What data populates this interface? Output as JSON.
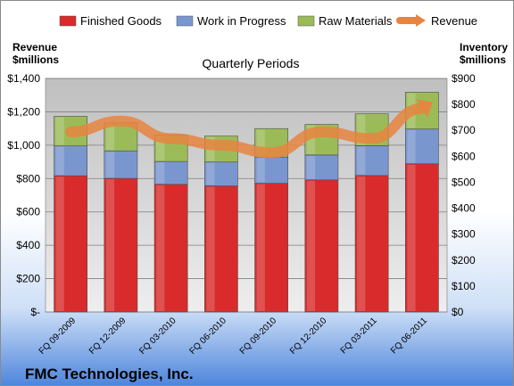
{
  "chart_data": {
    "type": "bar",
    "stacked": true,
    "title": "Quarterly Periods",
    "footer": "FMC Technologies, Inc.",
    "categories": [
      "FQ 09-2009",
      "FQ 12-2009",
      "FQ 03-2010",
      "FQ 06-2010",
      "FQ 09-2010",
      "FQ 12-2010",
      "FQ 03-2011",
      "FQ 06-2011"
    ],
    "series": [
      {
        "name": "Finished Goods",
        "axis": "right",
        "values": [
          525,
          515,
          492,
          486,
          496,
          509,
          526,
          571
        ],
        "color": "#d92b2b"
      },
      {
        "name": "Work in Progress",
        "axis": "right",
        "values": [
          115,
          106,
          88,
          92,
          101,
          96,
          115,
          134
        ],
        "color": "#7a96cf"
      },
      {
        "name": "Raw Materials",
        "axis": "right",
        "values": [
          114,
          108,
          102,
          100,
          110,
          118,
          123,
          142
        ],
        "color": "#9bbb59"
      },
      {
        "name": "Revenue",
        "axis": "left",
        "type": "line",
        "values": [
          1080,
          1145,
          1040,
          1000,
          955,
          1080,
          1040,
          1220
        ],
        "color": "#e8843f"
      }
    ],
    "left_axis": {
      "label_line1": "Revenue",
      "label_line2": "$millions",
      "range": [
        0,
        1400
      ],
      "ticks": [
        "$-",
        "$200",
        "$400",
        "$600",
        "$800",
        "$1,000",
        "$1,200",
        "$1,400"
      ]
    },
    "right_axis": {
      "label_line1": "Inventory",
      "label_line2": "$millions",
      "range": [
        0,
        900
      ],
      "ticks": [
        "$0",
        "$100",
        "$200",
        "$300",
        "$400",
        "$500",
        "$600",
        "$700",
        "$800",
        "$900"
      ]
    },
    "grid": true,
    "legend_position": "top"
  }
}
